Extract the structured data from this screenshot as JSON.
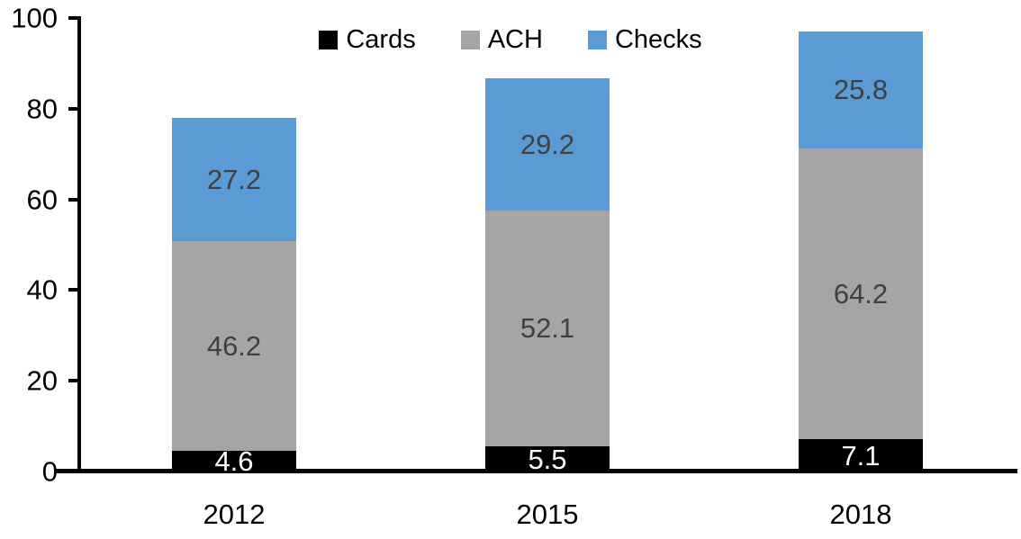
{
  "chart_data": {
    "type": "bar",
    "stacked": true,
    "title": "",
    "categories": [
      "2012",
      "2015",
      "2018"
    ],
    "series": [
      {
        "name": "Cards",
        "color": "#000000",
        "label_color": "#ffffff",
        "values": [
          4.6,
          5.5,
          7.1
        ]
      },
      {
        "name": "ACH",
        "color": "#a5a5a5",
        "label_color": "#404040",
        "values": [
          46.2,
          52.1,
          64.2
        ]
      },
      {
        "name": "Checks",
        "color": "#5b9bd5",
        "label_color": "#404040",
        "values": [
          27.2,
          29.2,
          25.8
        ]
      }
    ],
    "y_axis": {
      "min": 0,
      "max": 100,
      "tick_step": 20,
      "tick_labels": [
        "0",
        "20",
        "40",
        "60",
        "80",
        "100"
      ]
    },
    "x_axis_labels": [
      "2012",
      "2015",
      "2018"
    ],
    "legend_position": "top-center",
    "grid": false,
    "axis_color": "#000000",
    "background_color": "#ffffff"
  }
}
